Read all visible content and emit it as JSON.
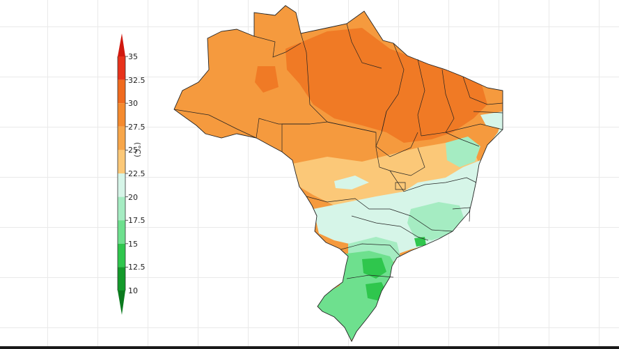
{
  "colorbar": {
    "ticks": [
      "35",
      "32.5",
      "30",
      "27.5",
      "25",
      "22.5",
      "20",
      "17.5",
      "15",
      "12.5",
      "10"
    ],
    "unit": "(°C)",
    "bands": [
      {
        "range": "32.5-35",
        "color": "#e8321a"
      },
      {
        "range": "30-32.5",
        "color": "#f06a1e"
      },
      {
        "range": "27.5-30",
        "color": "#f58a2e"
      },
      {
        "range": "25-27.5",
        "color": "#f7a64a"
      },
      {
        "range": "22.5-25",
        "color": "#fbc878"
      },
      {
        "range": "20-22.5",
        "color": "#d6f5e8"
      },
      {
        "range": "17.5-20",
        "color": "#a5ecc2"
      },
      {
        "range": "15-17.5",
        "color": "#6ee08e"
      },
      {
        "range": "12.5-15",
        "color": "#2fc64d"
      },
      {
        "range": "10-12.5",
        "color": "#139a2a"
      }
    ],
    "top_arrow_color": "#d0190f",
    "bottom_arrow_color": "#0b7a1e"
  },
  "map": {
    "region": "Brazil",
    "colors": {
      "hot": "#f07a25",
      "warm": "#f59a3e",
      "mild": "#fbc878",
      "cool": "#d6f5e8",
      "cooler": "#a5ecc2",
      "cold": "#6ee08e",
      "colder": "#2fc64d",
      "border": "#222222"
    }
  }
}
